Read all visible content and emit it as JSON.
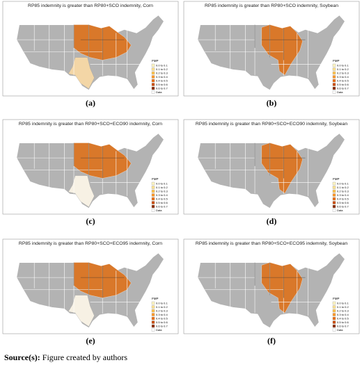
{
  "figure": {
    "panels": [
      {
        "title": "RP85 indemnity is greater than RP80+SCO indemnity, Corn",
        "label": "(a)"
      },
      {
        "title": "RP85 indemnity is greater than RP80+SCO indemnity, Soybean",
        "label": "(b)"
      },
      {
        "title": "RP85 indemnity is greater than RP80+SCO+ECO90 indemnity, Corn",
        "label": "(c)"
      },
      {
        "title": "RP85 indemnity is greater than RP80+SCO+ECO90 indemnity, Soybean",
        "label": "(d)"
      },
      {
        "title": "RP85 indemnity is greater than RP80+SCO+ECO95 indemnity, Corn",
        "label": "(e)"
      },
      {
        "title": "RP85 indemnity is greater than RP80+SCO+ECO95 indemnity, Soybean",
        "label": "(f)"
      }
    ],
    "legend": {
      "title": "FMP",
      "labels": [
        "0.0 to 0.1",
        "0.1 to 0.2",
        "0.2 to 0.3",
        "0.3 to 0.4",
        "0.4 to 0.5",
        "0.5 to 0.6",
        "0.6 to 0.7",
        "Data"
      ]
    },
    "source": {
      "prefix": "Source(s):",
      "text": "Figure created by authors"
    }
  }
}
